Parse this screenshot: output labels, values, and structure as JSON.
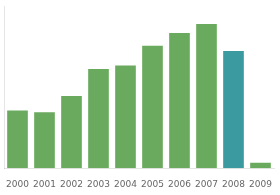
{
  "chart_data": {
    "type": "bar",
    "categories": [
      "2000",
      "2001",
      "2002",
      "2003",
      "2004",
      "2005",
      "2006",
      "2007",
      "2008",
      "2009"
    ],
    "values": [
      32,
      31,
      40,
      55,
      57,
      68,
      75,
      80,
      65,
      3
    ],
    "colors": [
      "#6aaa5e",
      "#6aaa5e",
      "#6aaa5e",
      "#6aaa5e",
      "#6aaa5e",
      "#6aaa5e",
      "#6aaa5e",
      "#6aaa5e",
      "#3a9aa0",
      "#6aaa5e"
    ],
    "ylim": [
      0,
      90
    ],
    "grid": false,
    "tick_labels": "x"
  }
}
